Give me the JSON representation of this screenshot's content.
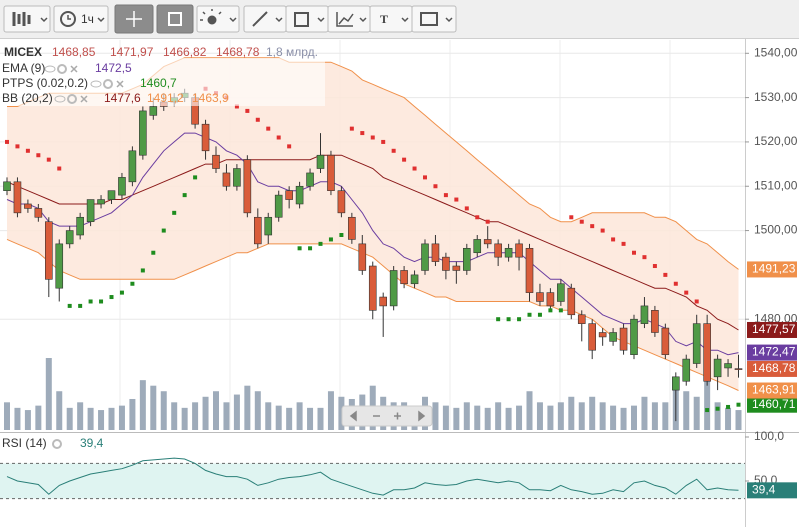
{
  "toolbar": {
    "interval": "1ч",
    "text_tool": "T"
  },
  "chart_data": {
    "type": "candlestick",
    "symbol": "MICEX",
    "last_candle_labels": [
      "1468,85",
      "1471,97",
      "1466,82",
      "1468,78"
    ],
    "up_color": "#4f9a46",
    "down_color": "#d95c3a",
    "candles": [
      [
        1509,
        1512,
        1508,
        1511
      ],
      [
        1511,
        1512,
        1503,
        1504
      ],
      [
        1506,
        1507,
        1504,
        1505
      ],
      [
        1505,
        1506,
        1502,
        1503
      ],
      [
        1502,
        1503,
        1485,
        1489
      ],
      [
        1487,
        1498,
        1484,
        1497
      ],
      [
        1497,
        1501,
        1496,
        1500
      ],
      [
        1499,
        1504,
        1498,
        1503
      ],
      [
        1502,
        1507,
        1501,
        1507
      ],
      [
        1506,
        1508,
        1505,
        1507
      ],
      [
        1507,
        1509,
        1506,
        1509
      ],
      [
        1508,
        1513,
        1507,
        1512
      ],
      [
        1511,
        1519,
        1510,
        1518
      ],
      [
        1517,
        1528,
        1516,
        1527
      ],
      [
        1526,
        1530,
        1525,
        1528
      ],
      [
        1529,
        1531,
        1527,
        1528
      ],
      [
        1529,
        1531,
        1528,
        1530
      ],
      [
        1530,
        1532,
        1529,
        1531
      ],
      [
        1530,
        1531,
        1523,
        1524
      ],
      [
        1524,
        1525,
        1516,
        1518
      ],
      [
        1517,
        1519,
        1513,
        1514
      ],
      [
        1513,
        1515,
        1509,
        1510
      ],
      [
        1510,
        1515,
        1509,
        1514
      ],
      [
        1516,
        1517,
        1503,
        1504
      ],
      [
        1503,
        1505,
        1496,
        1497
      ],
      [
        1499,
        1504,
        1497,
        1503
      ],
      [
        1503,
        1509,
        1502,
        1508
      ],
      [
        1509,
        1510,
        1505,
        1507
      ],
      [
        1506,
        1511,
        1505,
        1510
      ],
      [
        1510,
        1514,
        1509,
        1513
      ],
      [
        1514,
        1522,
        1513,
        1517
      ],
      [
        1517,
        1518,
        1508,
        1509
      ],
      [
        1509,
        1510,
        1503,
        1504
      ],
      [
        1503,
        1504,
        1497,
        1498
      ],
      [
        1497,
        1499,
        1490,
        1491
      ],
      [
        1492,
        1493,
        1480,
        1482
      ],
      [
        1485,
        1486,
        1476,
        1483
      ],
      [
        1483,
        1492,
        1482,
        1491
      ],
      [
        1491,
        1492,
        1487,
        1488
      ],
      [
        1488,
        1491,
        1487,
        1490
      ],
      [
        1491,
        1498,
        1490,
        1497
      ],
      [
        1497,
        1499,
        1492,
        1493
      ],
      [
        1494,
        1495,
        1489,
        1491
      ],
      [
        1492,
        1493,
        1488,
        1491
      ],
      [
        1491,
        1497,
        1490,
        1496
      ],
      [
        1495,
        1499,
        1494,
        1498
      ],
      [
        1498,
        1501,
        1496,
        1497
      ],
      [
        1497,
        1498,
        1492,
        1494
      ],
      [
        1494,
        1497,
        1493,
        1496
      ],
      [
        1497,
        1498,
        1491,
        1494
      ],
      [
        1496,
        1497,
        1484,
        1486
      ],
      [
        1486,
        1488,
        1483,
        1484
      ],
      [
        1486,
        1487,
        1482,
        1483
      ],
      [
        1484,
        1489,
        1483,
        1488
      ],
      [
        1487,
        1488,
        1480,
        1481
      ],
      [
        1481,
        1482,
        1475,
        1479
      ],
      [
        1479,
        1480,
        1471,
        1473
      ],
      [
        1477,
        1478,
        1474,
        1476
      ],
      [
        1475,
        1478,
        1474,
        1477
      ],
      [
        1478,
        1479,
        1472,
        1473
      ],
      [
        1472,
        1481,
        1471,
        1480
      ],
      [
        1479,
        1485,
        1478,
        1483
      ],
      [
        1482,
        1483,
        1476,
        1477
      ],
      [
        1478,
        1479,
        1471,
        1472
      ],
      [
        1464,
        1468,
        1457,
        1467
      ],
      [
        1466,
        1472,
        1465,
        1471
      ],
      [
        1470,
        1481,
        1469,
        1479
      ],
      [
        1479,
        1481,
        1465,
        1466
      ],
      [
        1467,
        1472,
        1464,
        1471
      ],
      [
        1469,
        1471,
        1467,
        1470
      ],
      [
        1468.85,
        1471.97,
        1466.82,
        1468.78
      ]
    ],
    "volume": {
      "label": "1,8 млрд.",
      "color": "#9eabba",
      "values": [
        2.5,
        2.0,
        1.8,
        2.2,
        6.5,
        3.5,
        2.0,
        2.5,
        2.0,
        1.8,
        2.0,
        2.2,
        2.8,
        4.5,
        4.0,
        3.5,
        2.5,
        2.0,
        2.5,
        3.0,
        3.5,
        2.5,
        3.2,
        4.0,
        3.5,
        2.5,
        2.2,
        2.0,
        2.5,
        2.0,
        2.0,
        3.5,
        3.0,
        2.8,
        3.2,
        4.0,
        3.0,
        2.5,
        2.5,
        2.0,
        3.0,
        2.5,
        2.2,
        2.0,
        2.5,
        2.2,
        2.0,
        2.5,
        2.0,
        2.2,
        3.5,
        2.5,
        2.2,
        2.5,
        3.0,
        2.5,
        3.0,
        2.5,
        2.2,
        2.0,
        2.2,
        3.0,
        2.5,
        2.5,
        4.0,
        3.5,
        3.0,
        4.5,
        2.5,
        2.0,
        1.8
      ]
    },
    "ylim": [
      1455,
      1543
    ],
    "yticks": [
      {
        "value": 1480,
        "label": "1480,00"
      },
      {
        "value": 1500,
        "label": "1500,00"
      },
      {
        "value": 1510,
        "label": "1510,00"
      },
      {
        "value": 1520,
        "label": "1520,00"
      },
      {
        "value": 1530,
        "label": "1530,00"
      },
      {
        "value": 1540,
        "label": "1540,00"
      }
    ],
    "grid": true,
    "overlays": [
      {
        "name": "EMA (9)",
        "type": "line",
        "color": "#6a3da0",
        "legend_labels": [
          "1472,5"
        ],
        "axis_labels": [
          "1472,47"
        ],
        "values": [
          1507,
          1506,
          1506,
          1505,
          1502,
          1501,
          1501,
          1501,
          1502,
          1503,
          1504,
          1506,
          1508,
          1512,
          1515,
          1518,
          1520,
          1522,
          1522,
          1521,
          1520,
          1518,
          1517,
          1515,
          1511,
          1510,
          1510,
          1509,
          1509,
          1510,
          1511,
          1511,
          1510,
          1507,
          1504,
          1500,
          1497,
          1496,
          1494,
          1493,
          1494,
          1494,
          1493,
          1493,
          1493,
          1494,
          1495,
          1495,
          1495,
          1495,
          1493,
          1491,
          1489,
          1489,
          1487,
          1485,
          1483,
          1481,
          1480,
          1479,
          1479,
          1480,
          1479,
          1478,
          1475,
          1474,
          1475,
          1473,
          1473,
          1472,
          1472.47
        ]
      },
      {
        "name": "PTPS (0.02,0.2)",
        "type": "dots",
        "color": "#1e8c1e",
        "down_color": "#e03030",
        "legend_labels": [
          "1460,7"
        ],
        "axis_labels": [
          "1460,71"
        ],
        "values": [
          1520,
          1519,
          1518,
          1517,
          1516,
          1514,
          1483,
          1483,
          1484,
          1484,
          1485,
          1486,
          1488,
          1491,
          1495,
          1500,
          1504,
          1508,
          1512,
          1532,
          1531,
          1530,
          1528,
          1527,
          1525,
          1523,
          1521,
          1519,
          1496,
          1496,
          1497,
          1498,
          1499,
          1523,
          1522,
          1521,
          1520,
          1518,
          1516,
          1514,
          1512,
          1510,
          1508,
          1507,
          1505,
          1503,
          1502,
          1480,
          1480,
          1480,
          1481,
          1481,
          1482,
          1482,
          1503,
          1502,
          1501,
          1500,
          1498,
          1497,
          1495,
          1494,
          1492,
          1490,
          1488,
          1486,
          1484,
          1459.5,
          1459.8,
          1460.2,
          1460.71
        ]
      },
      {
        "name": "BB (20,2)",
        "type": "band",
        "color": "#8b1a1a",
        "band_color": "#f0904a",
        "fill": "#fde6d9",
        "legend_labels": [
          "1477,6",
          "1491,2",
          "1463,9"
        ],
        "axis_labels": [
          "1477,57",
          "1491,23",
          "1463,91"
        ],
        "values": [
          1511,
          1510,
          1509,
          1508,
          1507,
          1506,
          1506,
          1506,
          1506,
          1506,
          1507,
          1507,
          1508,
          1509,
          1510,
          1511,
          1512,
          1513,
          1514,
          1515,
          1515,
          1516,
          1516,
          1516,
          1516,
          1516,
          1516,
          1516,
          1516,
          1516,
          1517,
          1517,
          1517,
          1516,
          1515,
          1514,
          1512,
          1511,
          1510,
          1509,
          1508,
          1507,
          1506,
          1505,
          1504,
          1503,
          1502,
          1502,
          1501,
          1500,
          1499,
          1498,
          1497,
          1496,
          1495,
          1494,
          1493,
          1492,
          1491,
          1490,
          1489,
          1488,
          1487,
          1487,
          1486,
          1485,
          1483,
          1482,
          1480,
          1479,
          1477.57
        ],
        "upper": [
          1528,
          1528,
          1529,
          1530,
          1531,
          1531,
          1531,
          1531,
          1531,
          1531,
          1531,
          1531,
          1532,
          1533,
          1535,
          1537,
          1538,
          1539,
          1539,
          1539,
          1539,
          1539,
          1539,
          1539,
          1539,
          1539,
          1539,
          1538,
          1538,
          1538,
          1538,
          1538,
          1537,
          1536,
          1534,
          1533,
          1532,
          1531,
          1530,
          1528,
          1526,
          1524,
          1522,
          1520,
          1518,
          1516,
          1514,
          1512,
          1510,
          1508,
          1506,
          1505,
          1503,
          1502,
          1502,
          1503,
          1504,
          1504,
          1504,
          1504,
          1504,
          1504,
          1503,
          1503,
          1502,
          1500,
          1498,
          1497,
          1495,
          1493,
          1491.23
        ],
        "lower": [
          1498,
          1497,
          1496,
          1495,
          1493,
          1491,
          1490,
          1489,
          1489,
          1489,
          1489,
          1489,
          1489,
          1489,
          1489,
          1489,
          1489,
          1490,
          1491,
          1492,
          1493,
          1494,
          1495,
          1495,
          1496,
          1497,
          1497,
          1497,
          1497,
          1497,
          1497,
          1497,
          1497,
          1496,
          1495,
          1494,
          1492,
          1490,
          1488,
          1487,
          1486,
          1485,
          1485,
          1484,
          1484,
          1484,
          1484,
          1484,
          1484,
          1484,
          1484,
          1483,
          1483,
          1482,
          1482,
          1481,
          1480,
          1478,
          1476,
          1475,
          1474,
          1473,
          1472,
          1471,
          1470,
          1469,
          1468,
          1467,
          1466,
          1465,
          1463.91
        ]
      }
    ],
    "rsi": {
      "name": "RSI (14)",
      "color": "#2a7f78",
      "legend_label": "39,4",
      "axis_label": "39,4",
      "ylim": [
        0,
        100
      ],
      "yticks": [
        {
          "value": 100,
          "label": "100,0"
        },
        {
          "value": 50,
          "label": "50,0"
        }
      ],
      "bands": [
        30,
        70
      ],
      "band_fill": "#dff4f1",
      "values": [
        55,
        50,
        48,
        46,
        35,
        45,
        50,
        54,
        58,
        60,
        62,
        64,
        68,
        73,
        74,
        75,
        76,
        75,
        70,
        62,
        58,
        55,
        55,
        52,
        45,
        48,
        52,
        54,
        55,
        57,
        60,
        52,
        48,
        44,
        40,
        36,
        34,
        40,
        40,
        42,
        48,
        46,
        45,
        46,
        50,
        52,
        50,
        48,
        50,
        48,
        40,
        40,
        39,
        45,
        40,
        38,
        35,
        36,
        40,
        38,
        48,
        50,
        45,
        42,
        35,
        45,
        52,
        40,
        42,
        40,
        39.4
      ]
    }
  }
}
